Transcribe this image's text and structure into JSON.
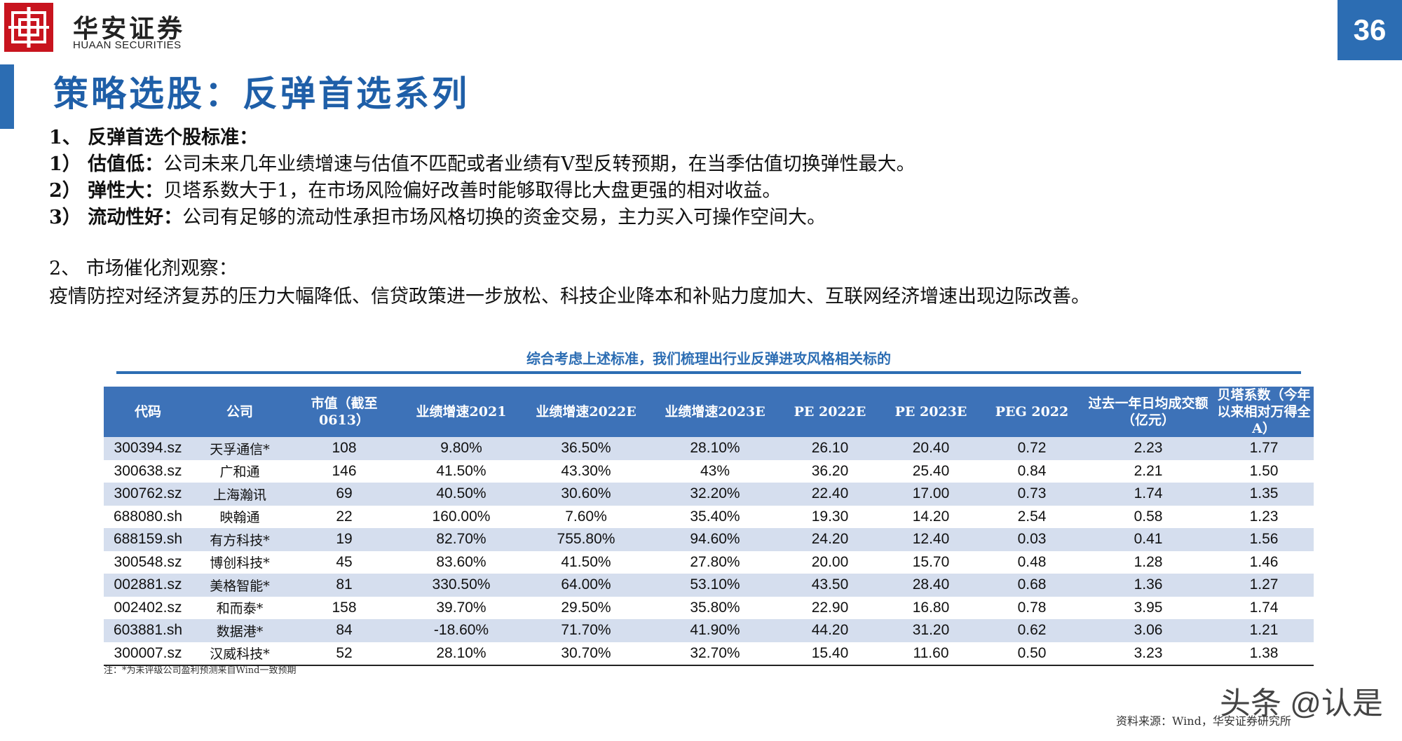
{
  "header": {
    "brand_cn": "华安证券",
    "brand_en": "HUAAN SECURITIES",
    "page_number": "36",
    "accent_color": "#2c6db3",
    "logo_color": "#c8141e"
  },
  "title": "策略选股：反弹首选系列",
  "criteria": {
    "heading": "1、 反弹首选个股标准：",
    "items": [
      {
        "label": "1） 估值低：",
        "text": "公司未来几年业绩增速与估值不匹配或者业绩有V型反转预期，在当季估值切换弹性最大。"
      },
      {
        "label": "2） 弹性大：",
        "text": "贝塔系数大于1，在市场风险偏好改善时能够取得比大盘更强的相对收益。"
      },
      {
        "label": "3） 流动性好：",
        "text": "公司有足够的流动性承担市场风格切换的资金交易，主力买入可操作空间大。"
      }
    ]
  },
  "catalyst": {
    "heading": "2、 市场催化剂观察：",
    "text": "疫情防控对经济复苏的压力大幅降低、信贷政策进一步放松、科技企业降本和补贴力度加大、互联网经济增速出现边际改善。"
  },
  "table": {
    "title": "综合考虑上述标准，我们梳理出行业反弹进攻风格相关标的",
    "headers": [
      "代码",
      "公司",
      "市值（截至0613）",
      "业绩增速2021",
      "业绩增速2022E",
      "业绩增速2023E",
      "PE 2022E",
      "PE 2023E",
      "PEG 2022",
      "过去一年日均成交额（亿元）",
      "贝塔系数（今年以来相对万得全A）"
    ],
    "rows": [
      [
        "300394.sz",
        "天孚通信*",
        "108",
        "9.80%",
        "36.50%",
        "28.10%",
        "26.10",
        "20.40",
        "0.72",
        "2.23",
        "1.77"
      ],
      [
        "300638.sz",
        "广和通",
        "146",
        "41.50%",
        "43.30%",
        "43%",
        "36.20",
        "25.40",
        "0.84",
        "2.21",
        "1.50"
      ],
      [
        "300762.sz",
        "上海瀚讯",
        "69",
        "40.50%",
        "30.60%",
        "32.20%",
        "22.40",
        "17.00",
        "0.73",
        "1.74",
        "1.35"
      ],
      [
        "688080.sh",
        "映翰通",
        "22",
        "160.00%",
        "7.60%",
        "35.40%",
        "19.30",
        "14.20",
        "2.54",
        "0.58",
        "1.23"
      ],
      [
        "688159.sh",
        "有方科技*",
        "19",
        "82.70%",
        "755.80%",
        "94.60%",
        "24.20",
        "12.40",
        "0.03",
        "0.41",
        "1.56"
      ],
      [
        "300548.sz",
        "博创科技*",
        "45",
        "83.60%",
        "41.50%",
        "27.80%",
        "20.00",
        "15.70",
        "0.48",
        "1.28",
        "1.46"
      ],
      [
        "002881.sz",
        "美格智能*",
        "81",
        "330.50%",
        "64.00%",
        "53.10%",
        "43.50",
        "28.40",
        "0.68",
        "1.36",
        "1.27"
      ],
      [
        "002402.sz",
        "和而泰*",
        "158",
        "39.70%",
        "29.50%",
        "35.80%",
        "22.90",
        "16.80",
        "0.78",
        "3.95",
        "1.74"
      ],
      [
        "603881.sh",
        "数据港*",
        "84",
        "-18.60%",
        "71.70%",
        "41.90%",
        "44.20",
        "31.20",
        "0.62",
        "3.06",
        "1.21"
      ],
      [
        "300007.sz",
        "汉威科技*",
        "52",
        "28.10%",
        "30.70%",
        "32.70%",
        "15.40",
        "11.60",
        "0.50",
        "3.23",
        "1.38"
      ]
    ]
  },
  "note": "注：*为未评级公司盈利预测来自Wind一致预期",
  "source": "资料来源：Wind，华安证券研究所",
  "watermark": "头条 @认是"
}
